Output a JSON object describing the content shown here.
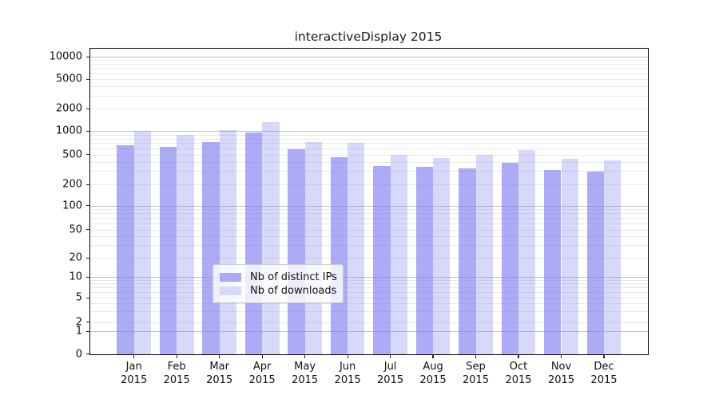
{
  "title": "interactiveDisplay 2015",
  "legend": {
    "items": [
      {
        "label": "Nb of distinct IPs",
        "swatch_color": "#a9a9f6"
      },
      {
        "label": "Nb of downloads",
        "swatch_color": "#d8d8fb"
      }
    ]
  },
  "chart_data": {
    "type": "bar",
    "title": "interactiveDisplay 2015",
    "scale": "symlog",
    "grid": true,
    "legend_position": "bottom-center",
    "categories": [
      "Jan",
      "Feb",
      "Mar",
      "Apr",
      "May",
      "Jun",
      "Jul",
      "Aug",
      "Sep",
      "Oct",
      "Nov",
      "Dec"
    ],
    "x_year": "2015",
    "series": [
      {
        "name": "Nb of distinct IPs",
        "color": "#7878f0",
        "alpha": 0.62,
        "values": [
          650,
          630,
          730,
          970,
          590,
          455,
          355,
          345,
          330,
          385,
          310,
          295
        ]
      },
      {
        "name": "Nb of downloads",
        "color": "#7878f0",
        "alpha": 0.29,
        "values": [
          1000,
          890,
          1020,
          1330,
          730,
          705,
          500,
          450,
          490,
          570,
          435,
          420
        ]
      }
    ],
    "y_ticks": [
      10000,
      5000,
      2000,
      1000,
      500,
      200,
      100,
      50,
      20,
      10,
      5,
      2,
      1,
      0
    ],
    "ylim": [
      0,
      13000
    ]
  }
}
